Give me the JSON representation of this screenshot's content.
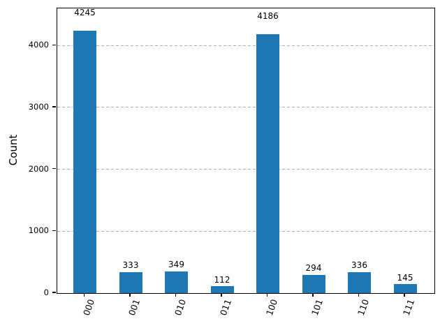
{
  "figure": {
    "background": "#ffffff",
    "spine_color": "#000000"
  },
  "chart_data": {
    "type": "bar",
    "categories": [
      "000",
      "001",
      "010",
      "011",
      "100",
      "101",
      "110",
      "111"
    ],
    "values": [
      4245,
      333,
      349,
      112,
      4186,
      294,
      336,
      145
    ],
    "bar_value_labels": [
      "4245",
      "333",
      "349",
      "112",
      "4186",
      "294",
      "336",
      "145"
    ],
    "title": "",
    "xlabel": "",
    "ylabel": "Count",
    "ylim": [
      0,
      4600
    ],
    "yticks": [
      0,
      1000,
      2000,
      3000,
      4000
    ],
    "ytick_labels": [
      "0",
      "1000",
      "2000",
      "3000",
      "4000"
    ],
    "xtick_rotation_deg": 70,
    "grid": {
      "axis": "y",
      "style": "dashed",
      "color": "#b0b0b0",
      "on": true
    },
    "legend": null,
    "bar_color": "#1f77b4"
  }
}
